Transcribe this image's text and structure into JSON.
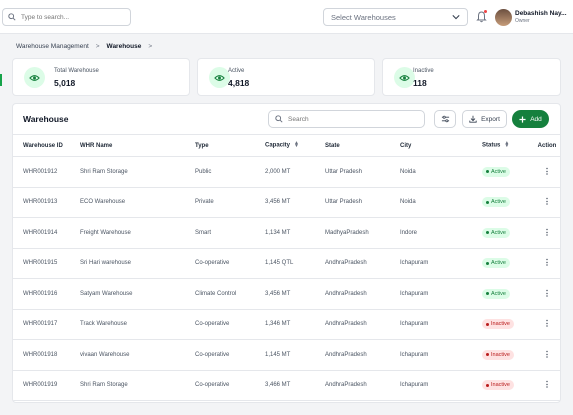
{
  "topbar": {
    "search_placeholder": "Type to search...",
    "warehouse_select": "Select Warehouses",
    "user_name": "Debashish Nay...",
    "user_role": "Owner"
  },
  "breadcrumb": {
    "parent": "Warehouse Management",
    "separator": ">",
    "current": "Warehouse"
  },
  "stats": [
    {
      "label": "Total Warehouse",
      "value": "5,018"
    },
    {
      "label": "Active",
      "value": "4,818"
    },
    {
      "label": "Inactive",
      "value": "118"
    }
  ],
  "panel": {
    "title": "Warehouse",
    "search_placeholder": "Search",
    "export_label": "Export",
    "add_label": "Add"
  },
  "table": {
    "headers": [
      "Warehouse ID",
      "WHR Name",
      "Type",
      "Capacity",
      "State",
      "City",
      "Status",
      "Action"
    ],
    "rows": [
      {
        "id": "WHR001912",
        "name": "Shri Ram Storage",
        "type": "Public",
        "capacity": "2,000 MT",
        "state": "Uttar Pradesh",
        "city": "Noida",
        "status": "Active"
      },
      {
        "id": "WHR001913",
        "name": "ECO Warehouse",
        "type": "Private",
        "capacity": "3,456 MT",
        "state": "Uttar Pradesh",
        "city": "Noida",
        "status": "Active"
      },
      {
        "id": "WHR001914",
        "name": "Freight Warehouse",
        "type": "Smart",
        "capacity": "1,134 MT",
        "state": "MadhyaPradesh",
        "city": "Indore",
        "status": "Active"
      },
      {
        "id": "WHR001915",
        "name": "Sri Hari warehouse",
        "type": "Co-operative",
        "capacity": "1,145 QTL",
        "state": "AndhraPradesh",
        "city": "Ichapuram",
        "status": "Active"
      },
      {
        "id": "WHR001916",
        "name": "Satyam Warehouse",
        "type": "Climate Control",
        "capacity": "3,456 MT",
        "state": "AndhraPradesh",
        "city": "Ichapuram",
        "status": "Active"
      },
      {
        "id": "WHR001917",
        "name": "Track Warehouse",
        "type": "Co-operative",
        "capacity": "1,346 MT",
        "state": "AndhraPradesh",
        "city": "Ichapuram",
        "status": "Inactive"
      },
      {
        "id": "WHR001918",
        "name": "vivaan Warehouse",
        "type": "Co-operative",
        "capacity": "1,145 MT",
        "state": "AndhraPradesh",
        "city": "Ichapuram",
        "status": "Inactive"
      },
      {
        "id": "WHR001919",
        "name": "Shri Ram Storage",
        "type": "Co-operative",
        "capacity": "3,466 MT",
        "state": "AndhraPradesh",
        "city": "Ichapuram",
        "status": "Inactive"
      }
    ]
  },
  "colors": {
    "accent": "#15803d",
    "active_bg": "#dcfce7",
    "inactive_bg": "#fee2e2"
  }
}
